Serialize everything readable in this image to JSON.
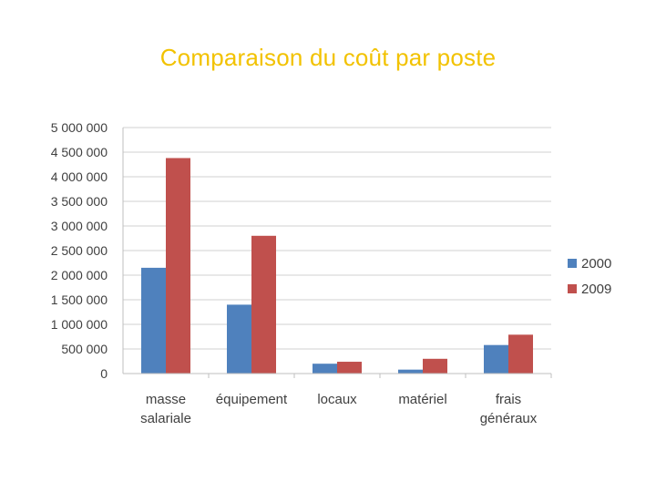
{
  "title": "Comparaison du coût par poste",
  "colors": {
    "title": "#f2c200",
    "grid": "#d0d0d0",
    "axis": "#bfbfbf",
    "text": "#404040"
  },
  "chart_data": {
    "type": "bar",
    "title": "Comparaison du coût par poste",
    "xlabel": "",
    "ylabel": "",
    "ylim": [
      0,
      5000000
    ],
    "ytick_step": 500000,
    "y_ticks": [
      "0",
      "500 000",
      "1 000 000",
      "1 500 000",
      "2 000 000",
      "2 500 000",
      "3 000 000",
      "3 500 000",
      "4 000 000",
      "4 500 000",
      "5 000 000"
    ],
    "grid": true,
    "legend": "right",
    "categories": [
      [
        "masse",
        "salariale"
      ],
      [
        "équipement"
      ],
      [
        "locaux"
      ],
      [
        "matériel"
      ],
      [
        "frais",
        "généraux"
      ]
    ],
    "series": [
      {
        "name": "2000",
        "color": "#4f81bd",
        "values": [
          2150000,
          1400000,
          200000,
          80000,
          580000
        ]
      },
      {
        "name": "2009",
        "color": "#c0504d",
        "values": [
          4380000,
          2800000,
          240000,
          300000,
          790000
        ]
      }
    ]
  }
}
